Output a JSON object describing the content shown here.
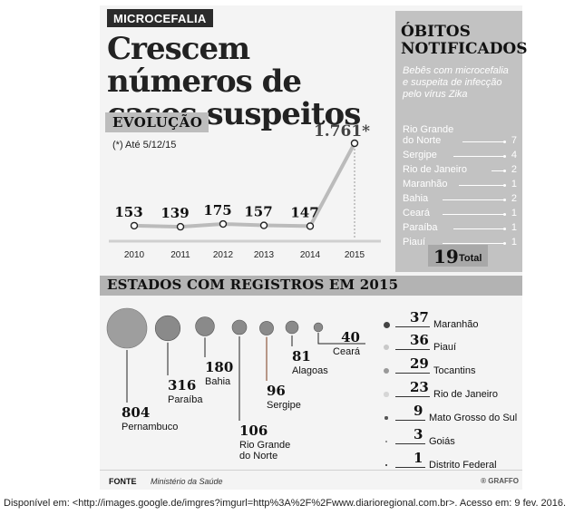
{
  "tag": "MICROCEFALIA",
  "headline": "Crescem números de casos suspeitos",
  "evolution": {
    "label": "EVOLUÇÃO",
    "footnote": "(*) Até 5/12/15"
  },
  "obitos": {
    "title": "ÓBITOS NOTIFICADOS",
    "description": "Bebês com microcefalia e suspeita de infecção pelo vírus Zika",
    "rows": [
      {
        "name": "Rio Grande do Norte",
        "value": "7"
      },
      {
        "name": "Sergipe",
        "value": "4"
      },
      {
        "name": "Rio de Janeiro",
        "value": "2"
      },
      {
        "name": "Maranhão",
        "value": "1"
      },
      {
        "name": "Bahia",
        "value": "2"
      },
      {
        "name": "Ceará",
        "value": "1"
      },
      {
        "name": "Paraíba",
        "value": "1"
      },
      {
        "name": "Piauí",
        "value": "1"
      }
    ],
    "total_number": "19",
    "total_label": "Total"
  },
  "states_section_title": "ESTADOS COM REGISTROS EM 2015",
  "source_label": "FONTE",
  "source_value": "Ministério da Saúde",
  "brand": "® GRAFFO",
  "citation": "Disponível em: <http://images.google.de/imgres?imgurl=http%3A%2F%2Fwww.diarioregional.com.br>. Acesso em: 9 fev. 2016.",
  "chart_data": [
    {
      "type": "line",
      "categories": [
        "2010",
        "2011",
        "2012",
        "2013",
        "2014",
        "2015"
      ],
      "values": [
        153,
        139,
        175,
        157,
        147,
        1761
      ],
      "data_labels": [
        "153",
        "139",
        "175",
        "157",
        "147",
        "1.761*"
      ],
      "grid": false
    },
    {
      "type": "scatter",
      "categories": [
        "Pernambuco",
        "Paraíba",
        "Bahia",
        "Rio Grande do Norte",
        "Sergipe",
        "Alagoas",
        "Ceará",
        "Maranhão",
        "Piauí",
        "Tocantins",
        "Rio de Janeiro",
        "Mato Grosso do Sul",
        "Goiás",
        "Distrito Federal"
      ],
      "values": [
        804,
        316,
        180,
        106,
        96,
        81,
        40,
        37,
        36,
        29,
        23,
        9,
        3,
        1
      ]
    }
  ]
}
